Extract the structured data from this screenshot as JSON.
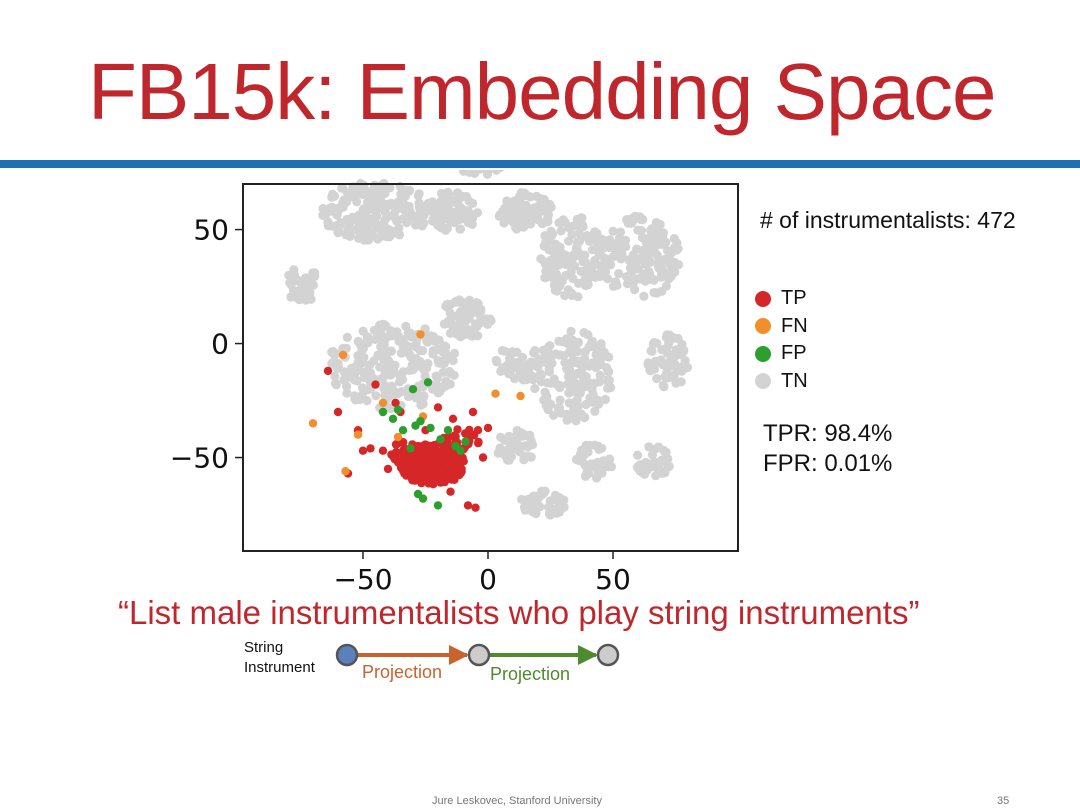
{
  "slide": {
    "title": "FB15k: Embedding Space",
    "count_label": "# of instrumentalists: 472",
    "metrics": {
      "tpr": "TPR: 98.4%",
      "fpr": "FPR: 0.01%"
    },
    "query": "“List male instrumentalists who play string instruments”",
    "diagram": {
      "start_label_line1": "String",
      "start_label_line2": "Instrument",
      "edge1_label": "Projection",
      "edge2_label": "Projection"
    },
    "footer": "Jure Leskovec, Stanford University",
    "page_number": "35"
  },
  "colors": {
    "title": "#c0272d",
    "rule": "#1f6fb4",
    "tp": "#d62728",
    "fn": "#f28e2b",
    "fp": "#2ca02c",
    "tn": "#d3d3d3",
    "edge1": "#c9622f",
    "edge2": "#4e8a2e",
    "start_node": "#5b7fbf"
  },
  "chart_data": {
    "type": "scatter",
    "xlim": [
      -98,
      100
    ],
    "ylim": [
      -91,
      70
    ],
    "x_ticks": [
      -50,
      0,
      50
    ],
    "y_ticks": [
      50,
      0,
      -50
    ],
    "x_tick_labels": [
      "−50",
      "0",
      "50"
    ],
    "y_tick_labels": [
      "50",
      "0",
      "−50"
    ],
    "legend": [
      {
        "name": "TP",
        "color": "#d62728"
      },
      {
        "name": "FN",
        "color": "#f28e2b"
      },
      {
        "name": "FP",
        "color": "#2ca02c"
      },
      {
        "name": "TN",
        "color": "#d3d3d3"
      }
    ],
    "legend_placement": "right",
    "grid": false,
    "series": [
      {
        "name": "TN",
        "clusters": [
          {
            "cx": -3,
            "cy": 80,
            "rx": 10,
            "ry": 6,
            "n": 60
          },
          {
            "cx": -45,
            "cy": 58,
            "rx": 22,
            "ry": 13,
            "n": 180
          },
          {
            "cx": -14,
            "cy": 58,
            "rx": 10,
            "ry": 9,
            "n": 70
          },
          {
            "cx": 15,
            "cy": 58,
            "rx": 11,
            "ry": 9,
            "n": 70
          },
          {
            "cx": 34,
            "cy": 38,
            "rx": 14,
            "ry": 18,
            "n": 130
          },
          {
            "cx": 61,
            "cy": 38,
            "rx": 16,
            "ry": 18,
            "n": 150
          },
          {
            "cx": -74,
            "cy": 26,
            "rx": 7,
            "ry": 8,
            "n": 40
          },
          {
            "cx": -9,
            "cy": 11,
            "rx": 11,
            "ry": 9,
            "n": 70
          },
          {
            "cx": -38,
            "cy": -10,
            "rx": 26,
            "ry": 19,
            "n": 230
          },
          {
            "cx": 34,
            "cy": -14,
            "rx": 16,
            "ry": 20,
            "n": 150
          },
          {
            "cx": 72,
            "cy": -8,
            "rx": 8,
            "ry": 12,
            "n": 60
          },
          {
            "cx": 12,
            "cy": -8,
            "rx": 9,
            "ry": 9,
            "n": 50
          },
          {
            "cx": 22,
            "cy": -70,
            "rx": 9,
            "ry": 6,
            "n": 45
          },
          {
            "cx": 42,
            "cy": -52,
            "rx": 8,
            "ry": 8,
            "n": 40
          },
          {
            "cx": 66,
            "cy": -52,
            "rx": 7,
            "ry": 7,
            "n": 35
          },
          {
            "cx": 12,
            "cy": -45,
            "rx": 9,
            "ry": 7,
            "n": 40
          }
        ]
      },
      {
        "name": "TP",
        "clusters": [
          {
            "cx": -22,
            "cy": -53,
            "rx": 13,
            "ry": 9,
            "n": 230
          },
          {
            "cx": -33,
            "cy": -48,
            "rx": 7,
            "ry": 5,
            "n": 30
          },
          {
            "cx": -10,
            "cy": -42,
            "rx": 8,
            "ry": 5,
            "n": 25
          }
        ],
        "points": [
          [
            -64,
            -12
          ],
          [
            -52,
            -38
          ],
          [
            -56,
            -57
          ],
          [
            -45,
            -18
          ],
          [
            -37,
            -26
          ],
          [
            -42,
            -47
          ],
          [
            -6,
            -30
          ],
          [
            -4,
            -38
          ],
          [
            0,
            -37
          ],
          [
            -30,
            -60
          ],
          [
            -5,
            -72
          ],
          [
            -8,
            -71
          ],
          [
            -47,
            -46
          ],
          [
            -14,
            -33
          ],
          [
            -20,
            -28
          ],
          [
            -28,
            -45
          ],
          [
            -60,
            -30
          ],
          [
            -35,
            -30
          ],
          [
            -25,
            -38
          ],
          [
            -2,
            -50
          ],
          [
            -15,
            -65
          ],
          [
            -40,
            -55
          ],
          [
            -20,
            -44
          ],
          [
            -50,
            -47
          ]
        ]
      },
      {
        "name": "FN",
        "points": [
          [
            -70,
            -35
          ],
          [
            -58,
            -5
          ],
          [
            -57,
            -56
          ],
          [
            -42,
            -26
          ],
          [
            -26,
            -32
          ],
          [
            -27,
            4
          ],
          [
            3,
            -22
          ],
          [
            13,
            -23
          ],
          [
            -52,
            -40
          ],
          [
            -36,
            -41
          ]
        ]
      },
      {
        "name": "FP",
        "points": [
          [
            -42,
            -30
          ],
          [
            -38,
            -33
          ],
          [
            -30,
            -20
          ],
          [
            -24,
            -17
          ],
          [
            -34,
            -38
          ],
          [
            -27,
            -34
          ],
          [
            -29,
            -36
          ],
          [
            -23,
            -37
          ],
          [
            -16,
            -38
          ],
          [
            -19,
            -42
          ],
          [
            -13,
            -45
          ],
          [
            -9,
            -43
          ],
          [
            -31,
            -46
          ],
          [
            -28,
            -66
          ],
          [
            -26,
            -68
          ],
          [
            -20,
            -71
          ],
          [
            -11,
            -47
          ],
          [
            -36,
            -29
          ]
        ]
      }
    ]
  }
}
